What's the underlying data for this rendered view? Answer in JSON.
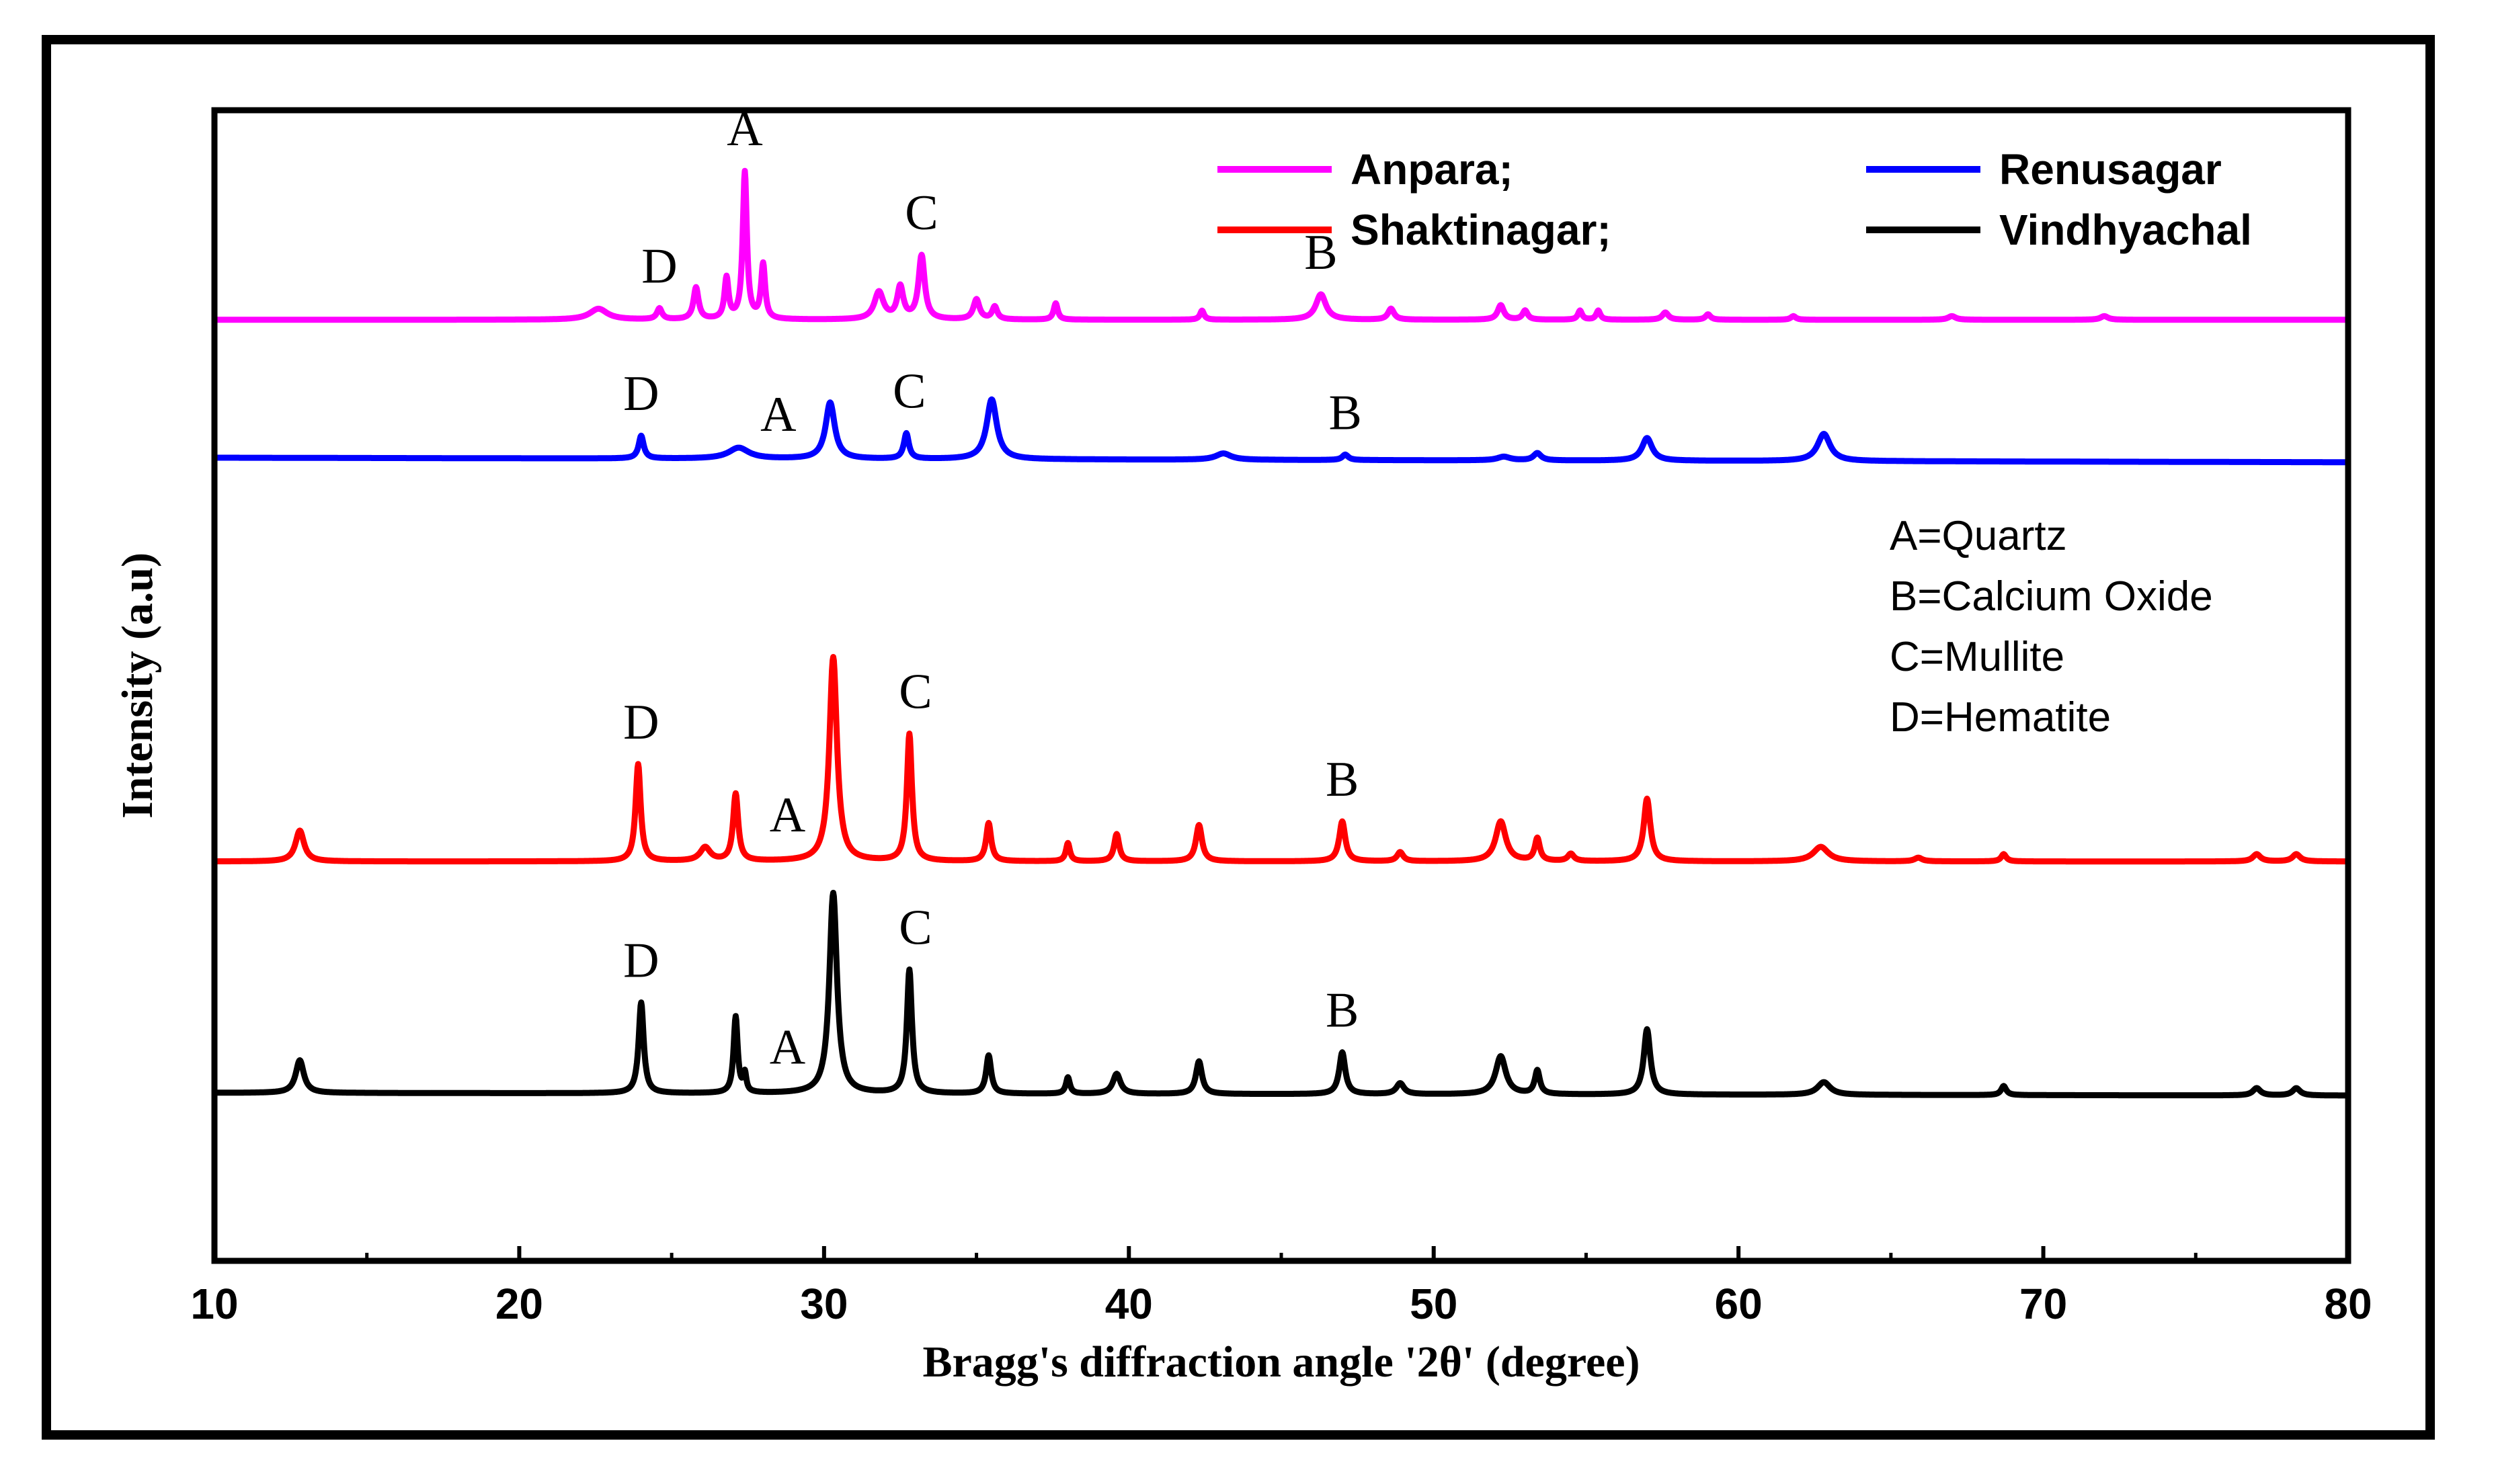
{
  "chart_data": {
    "type": "line",
    "title": "",
    "xlabel": "Bragg's diffraction angle '2θ' (degree)",
    "ylabel": "Intensity (a.u)",
    "xlim": [
      10,
      80
    ],
    "xticks": [
      10,
      20,
      30,
      40,
      50,
      60,
      70,
      80
    ],
    "ylim": [
      0,
      1
    ],
    "grid": false,
    "legend": {
      "placement": "top-right",
      "rows": [
        [
          {
            "label": "Anpara;",
            "series": "Anpara"
          },
          {
            "label": "Renusagar",
            "series": "Renusagar"
          }
        ],
        [
          {
            "label": "Shaktinagar;",
            "series": "Shaktinagar"
          },
          {
            "label": "Vindhyachal",
            "series": "Vindhyachal"
          }
        ]
      ]
    },
    "phase_key": [
      "A=Quartz",
      "B=Calcium Oxide",
      "C=Mullite",
      "D=Hematite"
    ],
    "series": [
      {
        "name": "Anpara",
        "color": "#ff00ff",
        "baseline": [
          [
            10,
            0.852
          ],
          [
            80,
            0.852
          ]
        ],
        "peaks": [
          [
            22.6,
            0.012,
            0.35
          ],
          [
            24.6,
            0.012,
            0.1
          ],
          [
            25.8,
            0.035,
            0.1
          ],
          [
            26.8,
            0.045,
            0.08
          ],
          [
            27.4,
            0.162,
            0.08
          ],
          [
            28.0,
            0.06,
            0.08
          ],
          [
            31.8,
            0.03,
            0.18
          ],
          [
            32.5,
            0.035,
            0.12
          ],
          [
            33.2,
            0.07,
            0.12
          ],
          [
            35.0,
            0.022,
            0.12
          ],
          [
            35.6,
            0.014,
            0.1
          ],
          [
            37.6,
            0.018,
            0.08
          ],
          [
            42.4,
            0.01,
            0.08
          ],
          [
            46.3,
            0.028,
            0.2
          ],
          [
            48.6,
            0.012,
            0.12
          ],
          [
            52.2,
            0.016,
            0.12
          ],
          [
            53.0,
            0.01,
            0.1
          ],
          [
            54.8,
            0.01,
            0.08
          ],
          [
            55.4,
            0.01,
            0.08
          ],
          [
            57.6,
            0.008,
            0.12
          ],
          [
            59.0,
            0.006,
            0.1
          ],
          [
            61.8,
            0.004,
            0.1
          ],
          [
            67.0,
            0.004,
            0.15
          ],
          [
            72.0,
            0.004,
            0.15
          ]
        ]
      },
      {
        "name": "Renusagar",
        "color": "#0000ff",
        "baseline": [
          [
            10,
            0.7
          ],
          [
            80,
            0.695
          ]
        ],
        "peaks": [
          [
            24.0,
            0.025,
            0.1
          ],
          [
            27.2,
            0.012,
            0.4
          ],
          [
            30.2,
            0.062,
            0.18
          ],
          [
            32.7,
            0.028,
            0.1
          ],
          [
            35.5,
            0.066,
            0.2
          ],
          [
            43.1,
            0.007,
            0.3
          ],
          [
            47.1,
            0.006,
            0.12
          ],
          [
            52.3,
            0.004,
            0.25
          ],
          [
            53.4,
            0.008,
            0.15
          ],
          [
            57.0,
            0.025,
            0.2
          ],
          [
            62.8,
            0.03,
            0.25
          ]
        ]
      },
      {
        "name": "Shaktinagar",
        "color": "#ff0000",
        "baseline": [
          [
            10,
            0.255
          ],
          [
            80,
            0.255
          ]
        ],
        "peaks": [
          [
            12.8,
            0.034,
            0.17
          ],
          [
            23.9,
            0.107,
            0.1
          ],
          [
            26.1,
            0.015,
            0.2
          ],
          [
            27.1,
            0.074,
            0.1
          ],
          [
            30.3,
            0.225,
            0.15
          ],
          [
            32.8,
            0.14,
            0.1
          ],
          [
            35.4,
            0.042,
            0.1
          ],
          [
            38.0,
            0.02,
            0.08
          ],
          [
            39.6,
            0.03,
            0.1
          ],
          [
            42.3,
            0.04,
            0.12
          ],
          [
            47.0,
            0.044,
            0.12
          ],
          [
            48.9,
            0.01,
            0.12
          ],
          [
            52.2,
            0.044,
            0.2
          ],
          [
            53.4,
            0.025,
            0.1
          ],
          [
            54.5,
            0.008,
            0.12
          ],
          [
            57.0,
            0.069,
            0.13
          ],
          [
            62.7,
            0.016,
            0.3
          ],
          [
            65.9,
            0.004,
            0.15
          ],
          [
            68.7,
            0.008,
            0.1
          ],
          [
            77.0,
            0.008,
            0.15
          ],
          [
            78.3,
            0.008,
            0.15
          ]
        ]
      },
      {
        "name": "Vindhyachal",
        "color": "#000000",
        "baseline": [
          [
            10,
            0.0
          ],
          [
            80,
            -0.003
          ]
        ],
        "peaks": [
          [
            12.8,
            0.036,
            0.16
          ],
          [
            24.0,
            0.1,
            0.1
          ],
          [
            27.1,
            0.084,
            0.08
          ],
          [
            27.4,
            0.02,
            0.06
          ],
          [
            30.3,
            0.221,
            0.15
          ],
          [
            32.8,
            0.136,
            0.1
          ],
          [
            35.4,
            0.042,
            0.1
          ],
          [
            38.0,
            0.018,
            0.08
          ],
          [
            39.6,
            0.022,
            0.15
          ],
          [
            42.3,
            0.036,
            0.12
          ],
          [
            47.0,
            0.046,
            0.12
          ],
          [
            48.9,
            0.012,
            0.15
          ],
          [
            52.2,
            0.042,
            0.2
          ],
          [
            53.4,
            0.026,
            0.1
          ],
          [
            57.0,
            0.072,
            0.13
          ],
          [
            62.8,
            0.014,
            0.25
          ],
          [
            68.7,
            0.01,
            0.1
          ],
          [
            77.0,
            0.008,
            0.15
          ],
          [
            78.3,
            0.008,
            0.15
          ]
        ]
      }
    ],
    "annotations": [
      {
        "text": "A",
        "series": "Anpara",
        "x": 27.4
      },
      {
        "text": "D",
        "series": "Anpara",
        "x": 24.6
      },
      {
        "text": "C",
        "series": "Anpara",
        "x": 33.2
      },
      {
        "text": "B",
        "series": "Anpara",
        "x": 46.3
      },
      {
        "text": "D",
        "series": "Renusagar",
        "x": 24.0
      },
      {
        "text": "A",
        "series": "Renusagar",
        "x": 28.5
      },
      {
        "text": "C",
        "series": "Renusagar",
        "x": 32.8
      },
      {
        "text": "B",
        "series": "Renusagar",
        "x": 47.1
      },
      {
        "text": "A",
        "series": "Shaktinagar",
        "x": 28.8
      },
      {
        "text": "C",
        "series": "Shaktinagar",
        "x": 33.0
      },
      {
        "text": "D",
        "series": "Shaktinagar",
        "x": 24.0
      },
      {
        "text": "B",
        "series": "Shaktinagar",
        "x": 47.0
      },
      {
        "text": "A",
        "series": "Vindhyachal",
        "x": 28.8
      },
      {
        "text": "C",
        "series": "Vindhyachal",
        "x": 33.0
      },
      {
        "text": "D",
        "series": "Vindhyachal",
        "x": 24.0
      },
      {
        "text": "B",
        "series": "Vindhyachal",
        "x": 47.0
      }
    ]
  }
}
